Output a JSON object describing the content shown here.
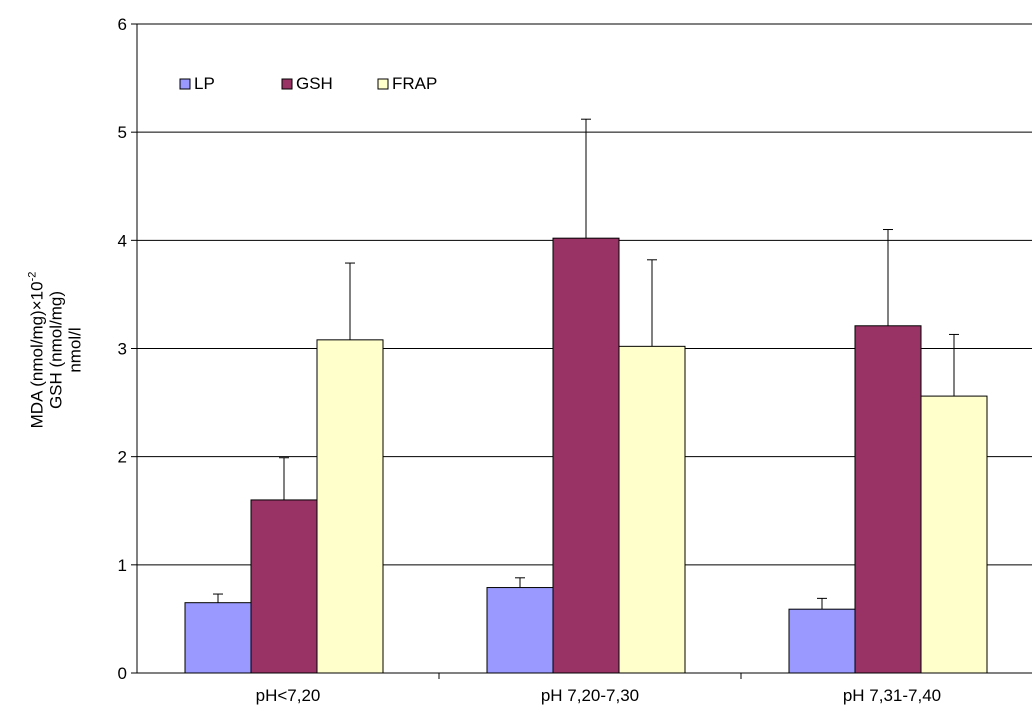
{
  "chart_data": {
    "type": "bar",
    "categories": [
      "pH<7,20",
      "pH 7,20-7,30",
      "pH 7,31-7,40"
    ],
    "series": [
      {
        "name": "LP",
        "values": [
          0.65,
          0.79,
          0.59
        ],
        "errors": [
          0.08,
          0.09,
          0.1
        ],
        "color": "#9999ff"
      },
      {
        "name": "GSH",
        "values": [
          1.6,
          4.02,
          3.21
        ],
        "errors": [
          0.39,
          1.1,
          0.89
        ],
        "color": "#993366"
      },
      {
        "name": "FRAP",
        "values": [
          3.08,
          3.02,
          2.56
        ],
        "errors": [
          0.71,
          0.8,
          0.57
        ],
        "color": "#ffffcc"
      }
    ],
    "ylabel_lines": [
      "MDA (nmol/mg)×10",
      "GSH (nmol/mg)",
      "nmol/l"
    ],
    "ylabel_superscript": "-2",
    "ylim": [
      0,
      6
    ],
    "yticks": [
      "0",
      "1",
      "2",
      "3",
      "4",
      "5",
      "6"
    ],
    "grid": true,
    "legend_position": "top-left"
  }
}
